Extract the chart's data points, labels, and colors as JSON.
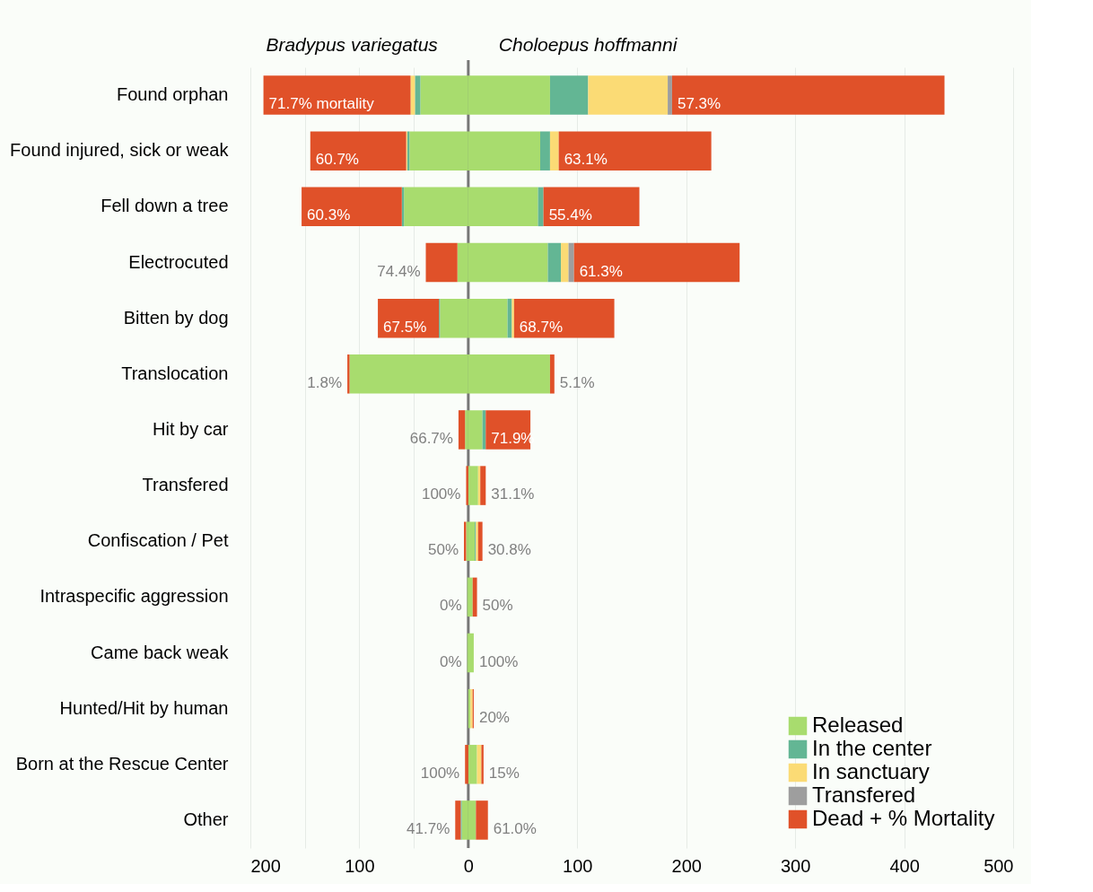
{
  "chart_data": {
    "type": "bar",
    "orientation": "horizontal",
    "stacked": true,
    "categories": [
      "Found orphan",
      "Found injured, sick or weak",
      "Fell down a tree",
      "Electrocuted",
      "Bitten by dog",
      "Translocation",
      "Hit by car",
      "Transfered",
      "Confiscation / Pet",
      "Intraspecific aggression",
      "Came back weak",
      "Hunted/Hit by human",
      "Born at the Rescue Center",
      "Other"
    ],
    "series": [
      {
        "name": "Released",
        "color": "#a8dc6e",
        "values": [
          75,
          66,
          64,
          73,
          36,
          75,
          13,
          9,
          6,
          4,
          5,
          2,
          8,
          7
        ]
      },
      {
        "name": "In the center",
        "color": "#63b694",
        "values": [
          35,
          9,
          5,
          12,
          4,
          null,
          3,
          null,
          1,
          null,
          null,
          null,
          null,
          null
        ]
      },
      {
        "name": "In sanctuary",
        "color": "#fbdb75",
        "values": [
          73,
          8,
          null,
          7,
          2,
          null,
          null,
          2,
          2,
          null,
          null,
          2,
          4,
          null
        ]
      },
      {
        "name": "Transfered",
        "color": "#9e9e9e",
        "values": [
          4,
          null,
          null,
          5,
          null,
          null,
          null,
          null,
          null,
          null,
          null,
          null,
          null,
          null
        ]
      },
      {
        "name": "Dead + % Mortality",
        "color": "#e05129",
        "values": [
          250,
          140,
          88,
          152,
          92,
          4,
          41,
          5,
          4,
          4,
          null,
          1,
          2,
          11
        ]
      },
      {
        "color": "#a8dc6e",
        "values": [
          -44,
          -54,
          -59,
          -10,
          -26,
          -109,
          -3,
          null,
          -2,
          -1,
          -1,
          null,
          null,
          -6
        ]
      },
      {
        "color": "#63b694",
        "values": [
          -5,
          -2,
          -2,
          null,
          -1,
          null,
          null,
          null,
          null,
          null,
          null,
          null,
          null,
          -1
        ]
      },
      {
        "color": "#fbdb75",
        "values": [
          -4,
          -1,
          null,
          null,
          null,
          null,
          null,
          null,
          null,
          null,
          null,
          null,
          null,
          null
        ]
      },
      {
        "color": "#e05129",
        "values": [
          -135,
          -88,
          -92,
          -29,
          -56,
          -2,
          -6,
          -2,
          -2,
          null,
          null,
          null,
          -3,
          -5
        ]
      }
    ],
    "xlim": [
      -200,
      500
    ],
    "xticks": [
      {
        "value": -200,
        "label": "200"
      },
      {
        "value": -150,
        "label": null
      },
      {
        "value": -100,
        "label": "100"
      },
      {
        "value": -50,
        "label": null
      },
      0,
      100,
      200,
      300,
      400,
      500
    ],
    "grid": true,
    "legend": "bottom right",
    "annotations": [
      "Bradypus variegatus",
      "Choloepus hoffmanni",
      {
        "text": "71.7% mortality",
        "x": -188,
        "y": "Found orphan"
      },
      {
        "text": "57.3%",
        "x": 187,
        "y": "Found orphan"
      },
      {
        "text": "60.7%",
        "x": -145,
        "y": "Found injured, sick or weak"
      },
      {
        "text": "63.1%",
        "x": 83,
        "y": "Found injured, sick or weak"
      },
      {
        "text": "60.3%",
        "x": -153,
        "y": "Fell down a tree"
      },
      {
        "text": "55.4%",
        "x": 69,
        "y": "Fell down a tree"
      },
      {
        "text": "74.4%",
        "x": -39,
        "y": "Electrocuted"
      },
      {
        "text": "61.3%",
        "x": 97,
        "y": "Electrocuted"
      },
      {
        "text": "67.5%",
        "x": -83,
        "y": "Bitten by dog"
      },
      {
        "text": "68.7%",
        "x": 42,
        "y": "Bitten by dog"
      },
      {
        "text": "1.8%",
        "x": -111,
        "y": "Translocation"
      },
      {
        "text": "5.1%",
        "x": 79,
        "y": "Translocation"
      },
      {
        "text": "66.7%",
        "x": -9,
        "y": "Hit by car"
      },
      {
        "text": "71.9%",
        "x": 16,
        "y": "Hit by car"
      },
      {
        "text": "100%",
        "x": -2,
        "y": "Transfered"
      },
      {
        "text": "31.1%",
        "x": 16,
        "y": "Transfered"
      },
      {
        "text": "50%",
        "x": -4,
        "y": "Confiscation / Pet"
      },
      {
        "text": "30.8%",
        "x": 13,
        "y": "Confiscation / Pet"
      },
      {
        "text": "0%",
        "x": -1,
        "y": "Intraspecific aggression"
      },
      {
        "text": "50%",
        "x": 8,
        "y": "Intraspecific aggression"
      },
      {
        "text": "0%",
        "x": -1,
        "y": "Came back weak"
      },
      {
        "text": "100%",
        "x": 5,
        "y": "Came back weak"
      },
      {
        "text": "20%",
        "x": 5,
        "y": "Hunted/Hit by human"
      },
      {
        "text": "100%",
        "x": -3,
        "y": "Born at the Rescue Center"
      },
      {
        "text": "15%",
        "x": 14,
        "y": "Born at the Rescue Center"
      },
      {
        "text": "41.7%",
        "x": -12,
        "y": "Other"
      },
      {
        "text": "61.0%",
        "x": 18,
        "y": "Other"
      }
    ]
  }
}
